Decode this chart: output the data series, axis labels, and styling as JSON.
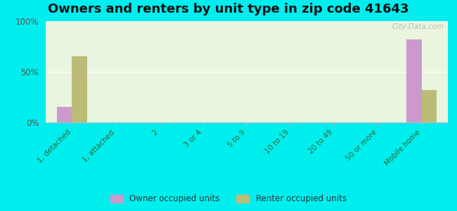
{
  "title": "Owners and renters by unit type in zip code 41643",
  "categories": [
    "1, detached",
    "1, attached",
    "2",
    "3 or 4",
    "5 to 9",
    "10 to 19",
    "20 to 49",
    "50 or more",
    "Mobile home"
  ],
  "owner_values": [
    15,
    0,
    0,
    0,
    0,
    0,
    0,
    0,
    82
  ],
  "renter_values": [
    65,
    0,
    0,
    0,
    0,
    0,
    0,
    0,
    32
  ],
  "owner_color": "#cc99cc",
  "renter_color": "#bcbc78",
  "ylim": [
    0,
    100
  ],
  "yticks": [
    0,
    50,
    100
  ],
  "ytick_labels": [
    "0%",
    "50%",
    "100%"
  ],
  "background_color": "#eaf5e0",
  "outer_background": "#00eeee",
  "bar_width": 0.35,
  "legend_owner": "Owner occupied units",
  "legend_renter": "Renter occupied units",
  "title_fontsize": 13,
  "watermark": "City-Data.com"
}
